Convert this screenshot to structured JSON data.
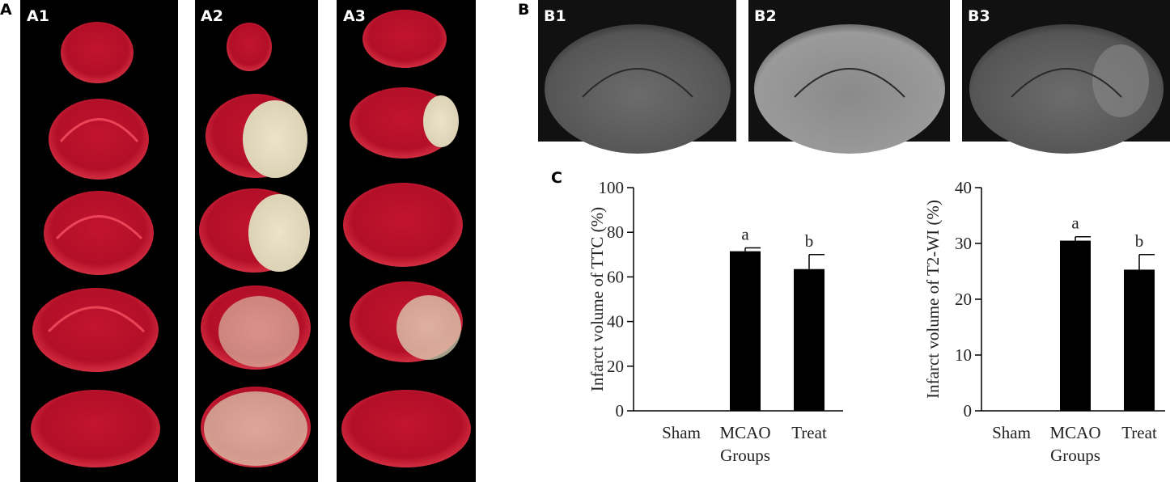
{
  "panel_labels": {
    "A": "A",
    "A1": "A1",
    "A2": "A2",
    "A3": "A3",
    "B": "B",
    "B1": "B1",
    "B2": "B2",
    "B3": "B3",
    "C": "C"
  },
  "chart_data": [
    {
      "type": "bar",
      "y_label": "Infarct volume of TTC (%)",
      "x_label": "Groups",
      "categories": [
        "Sham",
        "MCAO",
        "Treat"
      ],
      "values": [
        0,
        71.5,
        63.5
      ],
      "errors": [
        null,
        1.5,
        6.5
      ],
      "annotations": [
        null,
        "a",
        "b"
      ],
      "color": "#000000",
      "ylim": [
        0,
        100
      ],
      "yticks": [
        0,
        20,
        40,
        60,
        80,
        100
      ]
    },
    {
      "type": "bar",
      "y_label": "Infarct volume of T2-WI (%)",
      "x_label": "Groups",
      "categories": [
        "Sham",
        "MCAO",
        "Treat"
      ],
      "values": [
        0,
        30.5,
        25.3
      ],
      "errors": [
        null,
        0.7,
        2.7
      ],
      "annotations": [
        null,
        "a",
        "b"
      ],
      "color": "#000000",
      "ylim": [
        0,
        40
      ],
      "yticks": [
        0,
        10,
        20,
        30,
        40
      ]
    }
  ]
}
